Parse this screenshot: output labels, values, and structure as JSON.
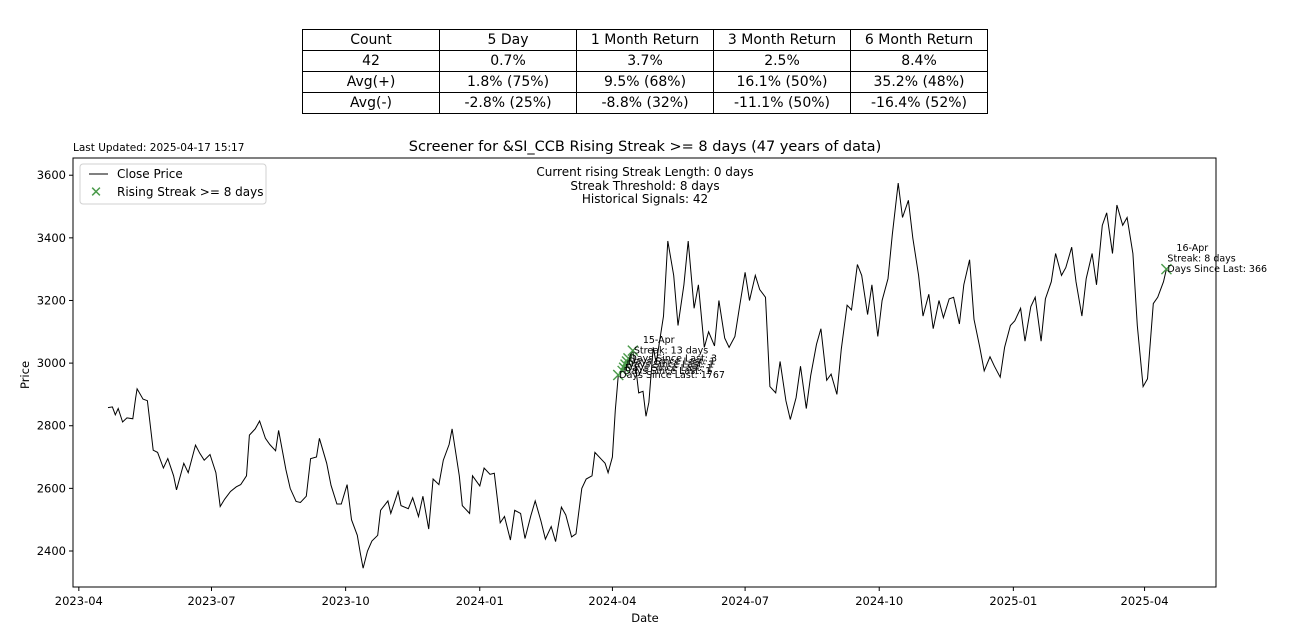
{
  "table": {
    "header": [
      "Count",
      "5 Day",
      "1 Month Return",
      "3 Month Return",
      "6 Month Return"
    ],
    "rows": [
      [
        "42",
        "0.7%",
        "3.7%",
        "2.5%",
        "8.4%"
      ],
      [
        "Avg(+)",
        "1.8% (75%)",
        "9.5% (68%)",
        "16.1% (50%)",
        "35.2% (48%)"
      ],
      [
        "Avg(-)",
        "-2.8% (25%)",
        "-8.8% (32%)",
        "-11.1% (50%)",
        "-16.4% (52%)"
      ]
    ]
  },
  "chart_data": {
    "type": "line",
    "title": "Screener for &SI_CCB Rising Streak >= 8 days (47 years of data)",
    "last_updated": "Last Updated: 2025-04-17 15:17",
    "xlabel": "Date",
    "ylabel": "Price",
    "x_ticks": [
      "2023-04",
      "2023-07",
      "2023-10",
      "2024-01",
      "2024-04",
      "2024-07",
      "2024-10",
      "2025-01",
      "2025-04"
    ],
    "y_ticks": [
      2400,
      2600,
      2800,
      3000,
      3200,
      3400,
      3600
    ],
    "xlim": [
      "2023-03-28",
      "2025-05-20"
    ],
    "ylim": [
      2285,
      3655
    ],
    "grid": false,
    "legend_position": "top-left",
    "legend": [
      "Close Price",
      "Rising Streak >= 8 days"
    ],
    "colors": {
      "line": "#000000",
      "marker": "#4a9a4a"
    },
    "info_box": [
      "Current rising Streak Length: 0 days",
      "Streak Threshold: 8 days",
      "Historical Signals: 42"
    ],
    "series": [
      {
        "name": "Close Price",
        "points": [
          [
            "2023-04-21",
            2858
          ],
          [
            "2023-04-24",
            2860
          ],
          [
            "2023-04-26",
            2835
          ],
          [
            "2023-04-28",
            2855
          ],
          [
            "2023-05-01",
            2812
          ],
          [
            "2023-05-04",
            2825
          ],
          [
            "2023-05-08",
            2822
          ],
          [
            "2023-05-10",
            2890
          ],
          [
            "2023-05-11",
            2918
          ],
          [
            "2023-05-15",
            2885
          ],
          [
            "2023-05-18",
            2880
          ],
          [
            "2023-05-22",
            2722
          ],
          [
            "2023-05-25",
            2715
          ],
          [
            "2023-05-29",
            2665
          ],
          [
            "2023-06-01",
            2695
          ],
          [
            "2023-06-05",
            2640
          ],
          [
            "2023-06-07",
            2595
          ],
          [
            "2023-06-12",
            2680
          ],
          [
            "2023-06-15",
            2650
          ],
          [
            "2023-06-20",
            2738
          ],
          [
            "2023-06-23",
            2712
          ],
          [
            "2023-06-26",
            2690
          ],
          [
            "2023-06-30",
            2708
          ],
          [
            "2023-07-04",
            2650
          ],
          [
            "2023-07-07",
            2542
          ],
          [
            "2023-07-10",
            2565
          ],
          [
            "2023-07-14",
            2590
          ],
          [
            "2023-07-18",
            2605
          ],
          [
            "2023-07-21",
            2612
          ],
          [
            "2023-07-25",
            2640
          ],
          [
            "2023-07-27",
            2770
          ],
          [
            "2023-07-31",
            2790
          ],
          [
            "2023-08-03",
            2815
          ],
          [
            "2023-08-07",
            2760
          ],
          [
            "2023-08-10",
            2740
          ],
          [
            "2023-08-14",
            2720
          ],
          [
            "2023-08-16",
            2785
          ],
          [
            "2023-08-21",
            2660
          ],
          [
            "2023-08-24",
            2600
          ],
          [
            "2023-08-28",
            2558
          ],
          [
            "2023-08-31",
            2555
          ],
          [
            "2023-09-04",
            2575
          ],
          [
            "2023-09-07",
            2695
          ],
          [
            "2023-09-11",
            2700
          ],
          [
            "2023-09-13",
            2760
          ],
          [
            "2023-09-18",
            2680
          ],
          [
            "2023-09-21",
            2610
          ],
          [
            "2023-09-25",
            2550
          ],
          [
            "2023-09-28",
            2550
          ],
          [
            "2023-10-02",
            2612
          ],
          [
            "2023-10-05",
            2500
          ],
          [
            "2023-10-09",
            2450
          ],
          [
            "2023-10-11",
            2395
          ],
          [
            "2023-10-13",
            2345
          ],
          [
            "2023-10-16",
            2400
          ],
          [
            "2023-10-19",
            2432
          ],
          [
            "2023-10-23",
            2450
          ],
          [
            "2023-10-25",
            2530
          ],
          [
            "2023-10-30",
            2560
          ],
          [
            "2023-11-01",
            2520
          ],
          [
            "2023-11-06",
            2590
          ],
          [
            "2023-11-08",
            2545
          ],
          [
            "2023-11-13",
            2535
          ],
          [
            "2023-11-16",
            2570
          ],
          [
            "2023-11-20",
            2510
          ],
          [
            "2023-11-23",
            2575
          ],
          [
            "2023-11-27",
            2470
          ],
          [
            "2023-11-30",
            2630
          ],
          [
            "2023-12-04",
            2612
          ],
          [
            "2023-12-07",
            2690
          ],
          [
            "2023-12-11",
            2740
          ],
          [
            "2023-12-13",
            2790
          ],
          [
            "2023-12-18",
            2640
          ],
          [
            "2023-12-20",
            2545
          ],
          [
            "2023-12-25",
            2520
          ],
          [
            "2023-12-27",
            2640
          ],
          [
            "2024-01-01",
            2608
          ],
          [
            "2024-01-04",
            2665
          ],
          [
            "2024-01-08",
            2645
          ],
          [
            "2024-01-11",
            2648
          ],
          [
            "2024-01-15",
            2490
          ],
          [
            "2024-01-18",
            2510
          ],
          [
            "2024-01-22",
            2435
          ],
          [
            "2024-01-25",
            2530
          ],
          [
            "2024-01-29",
            2520
          ],
          [
            "2024-02-01",
            2440
          ],
          [
            "2024-02-05",
            2512
          ],
          [
            "2024-02-08",
            2560
          ],
          [
            "2024-02-12",
            2495
          ],
          [
            "2024-02-15",
            2438
          ],
          [
            "2024-02-19",
            2478
          ],
          [
            "2024-02-22",
            2430
          ],
          [
            "2024-02-26",
            2540
          ],
          [
            "2024-02-29",
            2515
          ],
          [
            "2024-03-04",
            2445
          ],
          [
            "2024-03-07",
            2455
          ],
          [
            "2024-03-11",
            2600
          ],
          [
            "2024-03-14",
            2630
          ],
          [
            "2024-03-18",
            2640
          ],
          [
            "2024-03-20",
            2715
          ],
          [
            "2024-03-25",
            2690
          ],
          [
            "2024-03-27",
            2680
          ],
          [
            "2024-03-29",
            2650
          ],
          [
            "2024-04-01",
            2700
          ],
          [
            "2024-04-03",
            2850
          ],
          [
            "2024-04-04",
            2905
          ],
          [
            "2024-04-05",
            2962
          ],
          [
            "2024-04-08",
            2975
          ],
          [
            "2024-04-09",
            2985
          ],
          [
            "2024-04-10",
            2995
          ],
          [
            "2024-04-11",
            3005
          ],
          [
            "2024-04-12",
            3015
          ],
          [
            "2024-04-15",
            3040
          ],
          [
            "2024-04-17",
            2985
          ],
          [
            "2024-04-19",
            2905
          ],
          [
            "2024-04-22",
            2910
          ],
          [
            "2024-04-24",
            2830
          ],
          [
            "2024-04-26",
            2875
          ],
          [
            "2024-04-29",
            3050
          ],
          [
            "2024-05-01",
            3000
          ],
          [
            "2024-05-06",
            3150
          ],
          [
            "2024-05-09",
            3390
          ],
          [
            "2024-05-13",
            3280
          ],
          [
            "2024-05-16",
            3120
          ],
          [
            "2024-05-20",
            3250
          ],
          [
            "2024-05-23",
            3390
          ],
          [
            "2024-05-27",
            3175
          ],
          [
            "2024-05-30",
            3250
          ],
          [
            "2024-06-03",
            3050
          ],
          [
            "2024-06-06",
            3100
          ],
          [
            "2024-06-10",
            3055
          ],
          [
            "2024-06-13",
            3200
          ],
          [
            "2024-06-17",
            3080
          ],
          [
            "2024-06-20",
            3050
          ],
          [
            "2024-06-24",
            3085
          ],
          [
            "2024-06-27",
            3175
          ],
          [
            "2024-07-01",
            3290
          ],
          [
            "2024-07-04",
            3200
          ],
          [
            "2024-07-08",
            3280
          ],
          [
            "2024-07-11",
            3235
          ],
          [
            "2024-07-15",
            3210
          ],
          [
            "2024-07-18",
            2925
          ],
          [
            "2024-07-22",
            2905
          ],
          [
            "2024-07-25",
            3005
          ],
          [
            "2024-07-29",
            2880
          ],
          [
            "2024-08-01",
            2820
          ],
          [
            "2024-08-05",
            2890
          ],
          [
            "2024-08-08",
            2990
          ],
          [
            "2024-08-12",
            2855
          ],
          [
            "2024-08-15",
            2960
          ],
          [
            "2024-08-19",
            3060
          ],
          [
            "2024-08-22",
            3110
          ],
          [
            "2024-08-26",
            2945
          ],
          [
            "2024-08-29",
            2965
          ],
          [
            "2024-09-02",
            2900
          ],
          [
            "2024-09-05",
            3045
          ],
          [
            "2024-09-09",
            3185
          ],
          [
            "2024-09-12",
            3170
          ],
          [
            "2024-09-16",
            3315
          ],
          [
            "2024-09-19",
            3280
          ],
          [
            "2024-09-23",
            3155
          ],
          [
            "2024-09-26",
            3250
          ],
          [
            "2024-09-30",
            3085
          ],
          [
            "2024-10-03",
            3200
          ],
          [
            "2024-10-07",
            3270
          ],
          [
            "2024-10-10",
            3410
          ],
          [
            "2024-10-14",
            3575
          ],
          [
            "2024-10-17",
            3465
          ],
          [
            "2024-10-21",
            3520
          ],
          [
            "2024-10-24",
            3400
          ],
          [
            "2024-10-28",
            3280
          ],
          [
            "2024-10-31",
            3150
          ],
          [
            "2024-11-04",
            3220
          ],
          [
            "2024-11-07",
            3110
          ],
          [
            "2024-11-11",
            3200
          ],
          [
            "2024-11-14",
            3145
          ],
          [
            "2024-11-18",
            3205
          ],
          [
            "2024-11-21",
            3210
          ],
          [
            "2024-11-25",
            3125
          ],
          [
            "2024-11-28",
            3250
          ],
          [
            "2024-12-02",
            3330
          ],
          [
            "2024-12-05",
            3140
          ],
          [
            "2024-12-09",
            3050
          ],
          [
            "2024-12-12",
            2975
          ],
          [
            "2024-12-16",
            3020
          ],
          [
            "2024-12-19",
            2990
          ],
          [
            "2024-12-23",
            2955
          ],
          [
            "2024-12-26",
            3050
          ],
          [
            "2024-12-30",
            3120
          ],
          [
            "2025-01-02",
            3135
          ],
          [
            "2025-01-06",
            3175
          ],
          [
            "2025-01-09",
            3070
          ],
          [
            "2025-01-13",
            3180
          ],
          [
            "2025-01-16",
            3210
          ],
          [
            "2025-01-20",
            3070
          ],
          [
            "2025-01-23",
            3205
          ],
          [
            "2025-01-27",
            3260
          ],
          [
            "2025-01-30",
            3350
          ],
          [
            "2025-02-03",
            3280
          ],
          [
            "2025-02-06",
            3305
          ],
          [
            "2025-02-10",
            3370
          ],
          [
            "2025-02-13",
            3260
          ],
          [
            "2025-02-17",
            3150
          ],
          [
            "2025-02-20",
            3270
          ],
          [
            "2025-02-24",
            3350
          ],
          [
            "2025-02-27",
            3250
          ],
          [
            "2025-03-03",
            3440
          ],
          [
            "2025-03-06",
            3480
          ],
          [
            "2025-03-10",
            3350
          ],
          [
            "2025-03-13",
            3505
          ],
          [
            "2025-03-17",
            3440
          ],
          [
            "2025-03-20",
            3465
          ],
          [
            "2025-03-24",
            3350
          ],
          [
            "2025-03-27",
            3120
          ],
          [
            "2025-03-31",
            2925
          ],
          [
            "2025-04-03",
            2950
          ],
          [
            "2025-04-07",
            3190
          ],
          [
            "2025-04-10",
            3210
          ],
          [
            "2025-04-14",
            3260
          ],
          [
            "2025-04-16",
            3300
          ]
        ]
      }
    ],
    "signals": [
      {
        "date": "2024-04-05",
        "price": 2962,
        "label": [
          "",
          "Days Since Last: 1767"
        ]
      },
      {
        "date": "2024-04-08",
        "price": 2975,
        "label": [
          "",
          "Days Since Last: 1"
        ]
      },
      {
        "date": "2024-04-09",
        "price": 2985,
        "label": [
          "",
          "Days Since Last: 1"
        ]
      },
      {
        "date": "2024-04-10",
        "price": 2995,
        "label": [
          "",
          "Days Since Last: 1"
        ]
      },
      {
        "date": "2024-04-11",
        "price": 3005,
        "label": [
          "",
          "Days Since Last: 1"
        ]
      },
      {
        "date": "2024-04-12",
        "price": 3015,
        "label": [
          "",
          "Days Since Last: 3"
        ]
      },
      {
        "date": "2024-04-15",
        "price": 3040,
        "label": [
          "15-Apr",
          "Streak: 13 days"
        ]
      },
      {
        "date": "2025-04-16",
        "price": 3300,
        "label": [
          "16-Apr",
          "Streak: 8 days",
          "Days Since Last: 366"
        ]
      }
    ]
  }
}
